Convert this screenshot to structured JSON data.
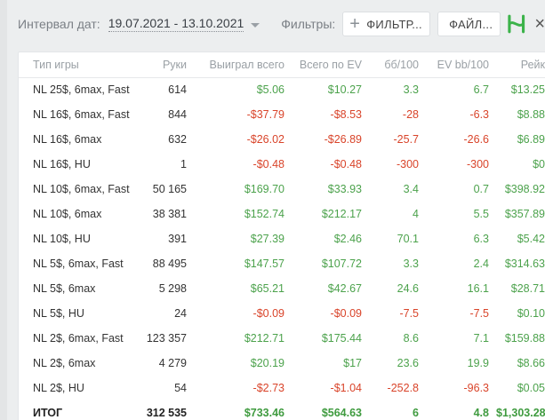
{
  "header": {
    "date_label": "Интервал дат:",
    "date_range": "19.07.2021 - 13.10.2021",
    "filters_label": "Фильтры:",
    "filter_button": "ФИЛЬТР...",
    "file_button": "ФАЙЛ...",
    "close_glyph": "×"
  },
  "colors": {
    "positive": "#4ca24c",
    "negative": "#d9442a",
    "brand": "#3cb34a"
  },
  "icons": [
    "plus-icon",
    "hand2note-logo-icon",
    "close-icon",
    "caret-down-icon"
  ],
  "table": {
    "columns": [
      "Тип игры",
      "Руки",
      "Выиграл всего",
      "Всего по EV",
      "бб/100",
      "EV bb/100",
      "Рейк"
    ],
    "rows": [
      [
        "NL 25$, 6max, Fast",
        "614",
        "$5.06",
        "$10.27",
        "3.3",
        "6.7",
        "$13.25"
      ],
      [
        "NL 16$, 6max, Fast",
        "844",
        "-$37.79",
        "-$8.53",
        "-28",
        "-6.3",
        "$8.88"
      ],
      [
        "NL 16$, 6max",
        "632",
        "-$26.02",
        "-$26.89",
        "-25.7",
        "-26.6",
        "$6.89"
      ],
      [
        "NL 16$, HU",
        "1",
        "-$0.48",
        "-$0.48",
        "-300",
        "-300",
        "$0"
      ],
      [
        "NL 10$, 6max, Fast",
        "50 165",
        "$169.70",
        "$33.93",
        "3.4",
        "0.7",
        "$398.92"
      ],
      [
        "NL 10$, 6max",
        "38 381",
        "$152.74",
        "$212.17",
        "4",
        "5.5",
        "$357.89"
      ],
      [
        "NL 10$, HU",
        "391",
        "$27.39",
        "$2.46",
        "70.1",
        "6.3",
        "$5.42"
      ],
      [
        "NL 5$, 6max, Fast",
        "88 495",
        "$147.57",
        "$107.72",
        "3.3",
        "2.4",
        "$314.63"
      ],
      [
        "NL 5$, 6max",
        "5 298",
        "$65.21",
        "$42.67",
        "24.6",
        "16.1",
        "$28.71"
      ],
      [
        "NL 5$, HU",
        "24",
        "-$0.09",
        "-$0.09",
        "-7.5",
        "-7.5",
        "$0.10"
      ],
      [
        "NL 2$, 6max, Fast",
        "123 357",
        "$212.71",
        "$175.44",
        "8.6",
        "7.1",
        "$159.88"
      ],
      [
        "NL 2$, 6max",
        "4 279",
        "$20.19",
        "$17",
        "23.6",
        "19.9",
        "$8.66"
      ],
      [
        "NL 2$, HU",
        "54",
        "-$2.73",
        "-$1.04",
        "-252.8",
        "-96.3",
        "$0.05"
      ]
    ],
    "total": [
      "ИТОГ",
      "312 535",
      "$733.46",
      "$564.63",
      "6",
      "4.8",
      "$1,303.28"
    ]
  }
}
